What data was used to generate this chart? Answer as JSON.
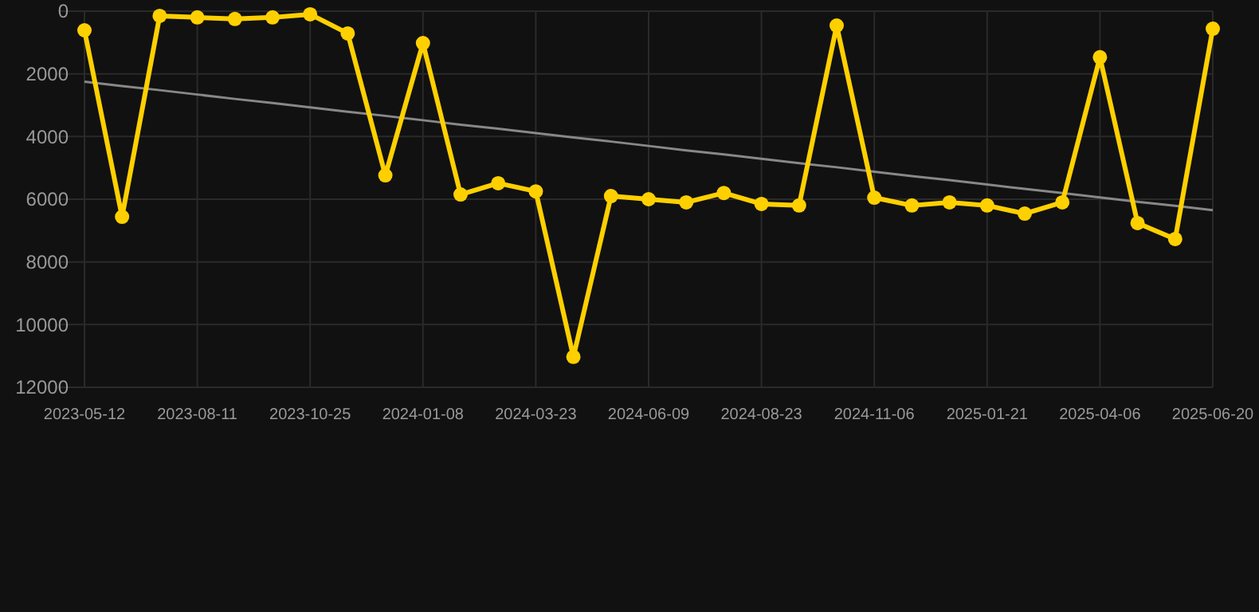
{
  "chart_data": {
    "type": "line",
    "categories": [
      "2023-05-12",
      null,
      null,
      "2023-08-11",
      null,
      null,
      "2023-10-25",
      null,
      null,
      "2024-01-08",
      null,
      null,
      "2024-03-23",
      null,
      null,
      "2024-06-09",
      null,
      null,
      "2024-08-23",
      null,
      null,
      "2024-11-06",
      null,
      null,
      "2025-01-21",
      null,
      null,
      "2025-04-06",
      null,
      null,
      "2025-06-20"
    ],
    "series": [
      {
        "color": "#ffd000",
        "marker": "circle",
        "values": [
          610,
          6560,
          150,
          200,
          250,
          200,
          100,
          710,
          5240,
          1020,
          5850,
          5490,
          5750,
          11030,
          5900,
          6000,
          6100,
          5800,
          6150,
          6200,
          460,
          5950,
          6200,
          6100,
          6200,
          6460,
          6100,
          1470,
          6760,
          7270,
          560
        ]
      },
      {
        "color": "#888888",
        "marker": "none",
        "values": [
          2250,
          2390,
          2520,
          2660,
          2800,
          2930,
          3070,
          3210,
          3340,
          3480,
          3620,
          3750,
          3890,
          4030,
          4160,
          4300,
          4440,
          4570,
          4710,
          4850,
          4980,
          5120,
          5260,
          5390,
          5530,
          5670,
          5800,
          5940,
          6080,
          6210,
          6350
        ]
      }
    ],
    "ylim": [
      12000,
      0
    ],
    "yticks": [
      0,
      2000,
      4000,
      6000,
      8000,
      10000,
      12000
    ],
    "grid": true
  }
}
